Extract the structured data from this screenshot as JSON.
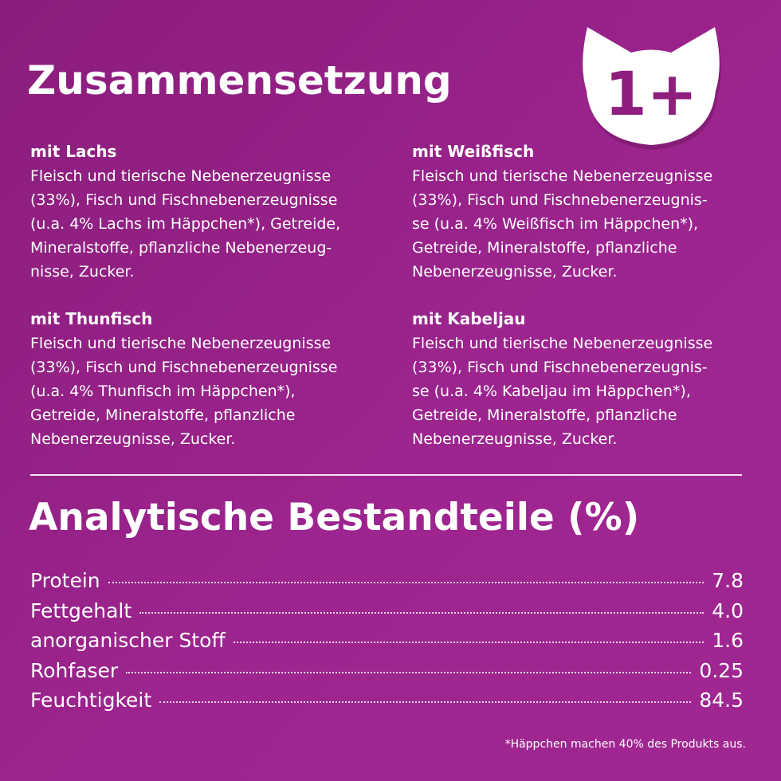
{
  "header": {
    "title": "Zusammensetzung",
    "badge": "1+"
  },
  "composition": [
    {
      "name": "mit Lachs",
      "lines": [
        "Fleisch und tierische Nebenerzeugnisse",
        "(33%), Fisch und Fischnebenerzeugnisse",
        "(u.a. 4% Lachs im Häppchen*), Getreide,",
        "Mineralstoffe, pflanzliche Nebenerzeug-",
        "nisse, Zucker."
      ]
    },
    {
      "name": "mit Weißfisch",
      "lines": [
        "Fleisch und tierische Nebenerzeugnisse",
        "(33%), Fisch und Fischnebenerzeugnis-",
        "se (u.a. 4% Weißfisch im Häppchen*),",
        "Getreide, Mineralstoffe, pflanzliche",
        "Nebenerzeugnisse, Zucker."
      ]
    },
    {
      "name": "mit Thunfisch",
      "lines": [
        "Fleisch und tierische Nebenerzeugnisse",
        "(33%), Fisch und Fischnebenerzeugnisse",
        "(u.a. 4% Thunfisch im Häppchen*),",
        "Getreide, Mineralstoffe, pflanzliche",
        "Nebenerzeugnisse, Zucker."
      ]
    },
    {
      "name": "mit Kabeljau",
      "lines": [
        "Fleisch und tierische Nebenerzeugnisse",
        "(33%), Fisch und Fischnebenerzeugnis-",
        "se (u.a. 4% Kabeljau im Häppchen*),",
        "Getreide, Mineralstoffe, pflanzliche",
        "Nebenerzeugnisse, Zucker."
      ]
    }
  ],
  "analysis": {
    "title": "Analytische Bestandteile (%)",
    "rows": [
      [
        "Protein",
        "7.8"
      ],
      [
        "Fettgehalt",
        "4.0"
      ],
      [
        "anorganischer Stoff",
        "1.6"
      ],
      [
        "Rohfaser",
        "0.25"
      ],
      [
        "Feuchtigkeit",
        "84.5"
      ]
    ]
  },
  "footnote": "*Häppchen machen 40% des Produkts aus."
}
